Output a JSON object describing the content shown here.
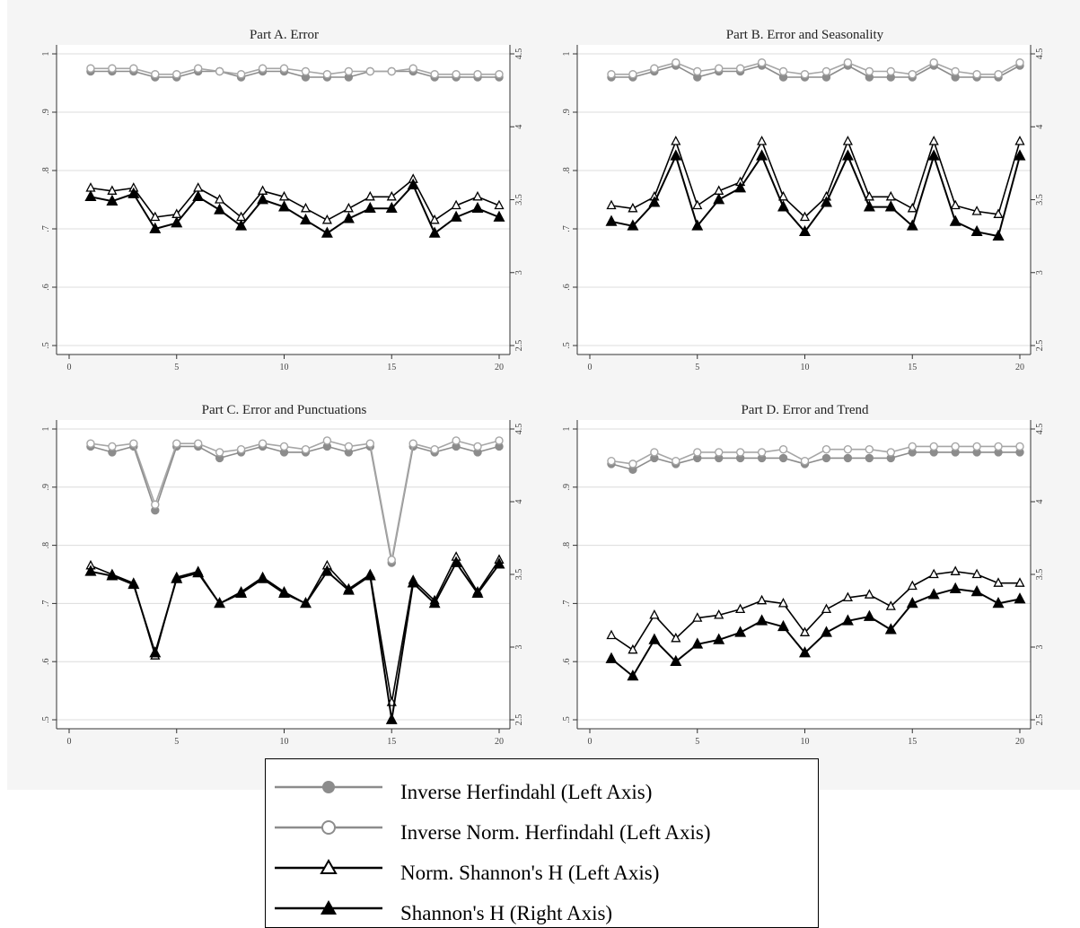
{
  "colors": {
    "herf_filled": "#8c8c8c",
    "herf_norm": "#a6a6a6",
    "shannon_norm": "#000000",
    "shannon": "#000000",
    "grid": "#dcdcdc",
    "axis": "#333333",
    "figure_background": "#f5f5f5",
    "plot_background": "#ffffff"
  },
  "legend": {
    "items": [
      {
        "label": "Inverse Herfindahl (Left Axis)",
        "marker": "filled-circle",
        "color": "#8c8c8c"
      },
      {
        "label": "Inverse Norm. Herfindahl (Left Axis)",
        "marker": "hollow-circle",
        "color": "#8c8c8c"
      },
      {
        "label": "Norm. Shannon's H (Left Axis)",
        "marker": "hollow-triangle",
        "color": "#000000"
      },
      {
        "label": "Shannon's H (Right Axis)",
        "marker": "filled-triangle",
        "color": "#000000"
      }
    ]
  },
  "chart_data": [
    {
      "type": "line",
      "title": "Part A. Error",
      "x": [
        1,
        2,
        3,
        4,
        5,
        6,
        7,
        8,
        9,
        10,
        11,
        12,
        13,
        14,
        15,
        16,
        17,
        18,
        19,
        20
      ],
      "xticks": [
        "0",
        "5",
        "10",
        "15",
        "20"
      ],
      "xlim": [
        0,
        20
      ],
      "ylim_left": [
        0.5,
        1
      ],
      "yticks_left": [
        ".5",
        ".6",
        ".7",
        ".8",
        ".9",
        "1"
      ],
      "ylim_right": [
        2.5,
        4.5
      ],
      "yticks_right": [
        "2.5",
        "3",
        "3.5",
        "4",
        "4.5"
      ],
      "series": [
        {
          "name": "Inverse Herfindahl (Left Axis)",
          "axis": "left",
          "values": [
            0.97,
            0.97,
            0.97,
            0.96,
            0.96,
            0.97,
            0.97,
            0.96,
            0.97,
            0.97,
            0.96,
            0.96,
            0.96,
            0.97,
            0.97,
            0.97,
            0.96,
            0.96,
            0.96,
            0.96
          ]
        },
        {
          "name": "Inverse Norm. Herfindahl (Left Axis)",
          "axis": "left",
          "values": [
            0.975,
            0.975,
            0.975,
            0.965,
            0.965,
            0.975,
            0.97,
            0.965,
            0.975,
            0.975,
            0.97,
            0.965,
            0.97,
            0.97,
            0.97,
            0.975,
            0.965,
            0.965,
            0.965,
            0.965
          ]
        },
        {
          "name": "Norm. Shannon's H (Left Axis)",
          "axis": "left",
          "values": [
            0.77,
            0.765,
            0.77,
            0.72,
            0.725,
            0.77,
            0.75,
            0.72,
            0.765,
            0.755,
            0.735,
            0.715,
            0.735,
            0.755,
            0.755,
            0.785,
            0.715,
            0.74,
            0.755,
            0.74
          ]
        },
        {
          "name": "Shannon's H (Right Axis)",
          "axis": "right",
          "values": [
            3.52,
            3.49,
            3.54,
            3.3,
            3.34,
            3.52,
            3.43,
            3.32,
            3.5,
            3.45,
            3.36,
            3.27,
            3.37,
            3.44,
            3.44,
            3.6,
            3.27,
            3.38,
            3.44,
            3.38
          ]
        }
      ]
    },
    {
      "type": "line",
      "title": "Part B. Error and Seasonality",
      "x": [
        1,
        2,
        3,
        4,
        5,
        6,
        7,
        8,
        9,
        10,
        11,
        12,
        13,
        14,
        15,
        16,
        17,
        18,
        19,
        20
      ],
      "xticks": [
        "0",
        "5",
        "10",
        "15",
        "20"
      ],
      "xlim": [
        0,
        20
      ],
      "ylim_left": [
        0.5,
        1
      ],
      "yticks_left": [
        ".5",
        ".6",
        ".7",
        ".8",
        ".9",
        "1"
      ],
      "ylim_right": [
        2.5,
        4.5
      ],
      "yticks_right": [
        "2.5",
        "3",
        "3.5",
        "4",
        "4.5"
      ],
      "series": [
        {
          "name": "Inverse Herfindahl (Left Axis)",
          "axis": "left",
          "values": [
            0.96,
            0.96,
            0.97,
            0.98,
            0.96,
            0.97,
            0.97,
            0.98,
            0.96,
            0.96,
            0.96,
            0.98,
            0.96,
            0.96,
            0.96,
            0.98,
            0.96,
            0.96,
            0.96,
            0.98
          ]
        },
        {
          "name": "Inverse Norm. Herfindahl (Left Axis)",
          "axis": "left",
          "values": [
            0.965,
            0.965,
            0.975,
            0.985,
            0.97,
            0.975,
            0.975,
            0.985,
            0.97,
            0.965,
            0.97,
            0.985,
            0.97,
            0.97,
            0.965,
            0.985,
            0.97,
            0.965,
            0.965,
            0.985
          ]
        },
        {
          "name": "Norm. Shannon's H (Left Axis)",
          "axis": "left",
          "values": [
            0.74,
            0.735,
            0.755,
            0.85,
            0.74,
            0.765,
            0.78,
            0.85,
            0.755,
            0.72,
            0.755,
            0.85,
            0.755,
            0.755,
            0.735,
            0.85,
            0.74,
            0.73,
            0.725,
            0.85
          ]
        },
        {
          "name": "Shannon's H (Right Axis)",
          "axis": "right",
          "values": [
            3.35,
            3.32,
            3.48,
            3.8,
            3.32,
            3.5,
            3.58,
            3.8,
            3.45,
            3.28,
            3.48,
            3.8,
            3.45,
            3.45,
            3.32,
            3.8,
            3.35,
            3.28,
            3.25,
            3.8
          ]
        }
      ]
    },
    {
      "type": "line",
      "title": "Part C. Error and Punctuations",
      "x": [
        1,
        2,
        3,
        4,
        5,
        6,
        7,
        8,
        9,
        10,
        11,
        12,
        13,
        14,
        15,
        16,
        17,
        18,
        19,
        20
      ],
      "xticks": [
        "0",
        "5",
        "10",
        "15",
        "20"
      ],
      "xlim": [
        0,
        20
      ],
      "ylim_left": [
        0.5,
        1
      ],
      "yticks_left": [
        ".5",
        ".6",
        ".7",
        ".8",
        ".9",
        "1"
      ],
      "ylim_right": [
        2.5,
        4.5
      ],
      "yticks_right": [
        "2.5",
        "3",
        "3.5",
        "4",
        "4.5"
      ],
      "series": [
        {
          "name": "Inverse Herfindahl (Left Axis)",
          "axis": "left",
          "values": [
            0.97,
            0.96,
            0.97,
            0.86,
            0.97,
            0.97,
            0.95,
            0.96,
            0.97,
            0.96,
            0.96,
            0.97,
            0.96,
            0.97,
            0.77,
            0.97,
            0.96,
            0.97,
            0.96,
            0.97
          ]
        },
        {
          "name": "Inverse Norm. Herfindahl (Left Axis)",
          "axis": "left",
          "values": [
            0.975,
            0.97,
            0.975,
            0.87,
            0.975,
            0.975,
            0.96,
            0.965,
            0.975,
            0.97,
            0.965,
            0.98,
            0.97,
            0.975,
            0.775,
            0.975,
            0.965,
            0.98,
            0.97,
            0.98
          ]
        },
        {
          "name": "Norm. Shannon's H (Left Axis)",
          "axis": "left",
          "values": [
            0.765,
            0.75,
            0.735,
            0.61,
            0.745,
            0.755,
            0.7,
            0.72,
            0.745,
            0.72,
            0.7,
            0.765,
            0.725,
            0.75,
            0.53,
            0.74,
            0.705,
            0.78,
            0.72,
            0.775
          ]
        },
        {
          "name": "Shannon's H (Right Axis)",
          "axis": "right",
          "values": [
            3.52,
            3.49,
            3.43,
            2.96,
            3.47,
            3.51,
            3.3,
            3.37,
            3.47,
            3.37,
            3.3,
            3.52,
            3.39,
            3.49,
            2.5,
            3.44,
            3.3,
            3.58,
            3.37,
            3.57
          ]
        }
      ]
    },
    {
      "type": "line",
      "title": "Part D. Error and Trend",
      "x": [
        1,
        2,
        3,
        4,
        5,
        6,
        7,
        8,
        9,
        10,
        11,
        12,
        13,
        14,
        15,
        16,
        17,
        18,
        19,
        20
      ],
      "xticks": [
        "0",
        "5",
        "10",
        "15",
        "20"
      ],
      "xlim": [
        0,
        20
      ],
      "ylim_left": [
        0.5,
        1
      ],
      "yticks_left": [
        ".5",
        ".6",
        ".7",
        ".8",
        ".9",
        "1"
      ],
      "ylim_right": [
        2.5,
        4.5
      ],
      "yticks_right": [
        "2.5",
        "3",
        "3.5",
        "4",
        "4.5"
      ],
      "series": [
        {
          "name": "Inverse Herfindahl (Left Axis)",
          "axis": "left",
          "values": [
            0.94,
            0.93,
            0.95,
            0.94,
            0.95,
            0.95,
            0.95,
            0.95,
            0.95,
            0.94,
            0.95,
            0.95,
            0.95,
            0.95,
            0.96,
            0.96,
            0.96,
            0.96,
            0.96,
            0.96
          ]
        },
        {
          "name": "Inverse Norm. Herfindahl (Left Axis)",
          "axis": "left",
          "values": [
            0.945,
            0.94,
            0.96,
            0.945,
            0.96,
            0.96,
            0.96,
            0.96,
            0.965,
            0.945,
            0.965,
            0.965,
            0.965,
            0.96,
            0.97,
            0.97,
            0.97,
            0.97,
            0.97,
            0.97
          ]
        },
        {
          "name": "Norm. Shannon's H (Left Axis)",
          "axis": "left",
          "values": [
            0.645,
            0.62,
            0.68,
            0.64,
            0.675,
            0.68,
            0.69,
            0.705,
            0.7,
            0.65,
            0.69,
            0.71,
            0.715,
            0.695,
            0.73,
            0.75,
            0.755,
            0.75,
            0.735,
            0.735
          ]
        },
        {
          "name": "Shannon's H (Right Axis)",
          "axis": "right",
          "values": [
            2.92,
            2.8,
            3.05,
            2.9,
            3.02,
            3.05,
            3.1,
            3.18,
            3.14,
            2.96,
            3.1,
            3.18,
            3.21,
            3.12,
            3.3,
            3.36,
            3.4,
            3.38,
            3.3,
            3.33
          ]
        }
      ]
    }
  ]
}
